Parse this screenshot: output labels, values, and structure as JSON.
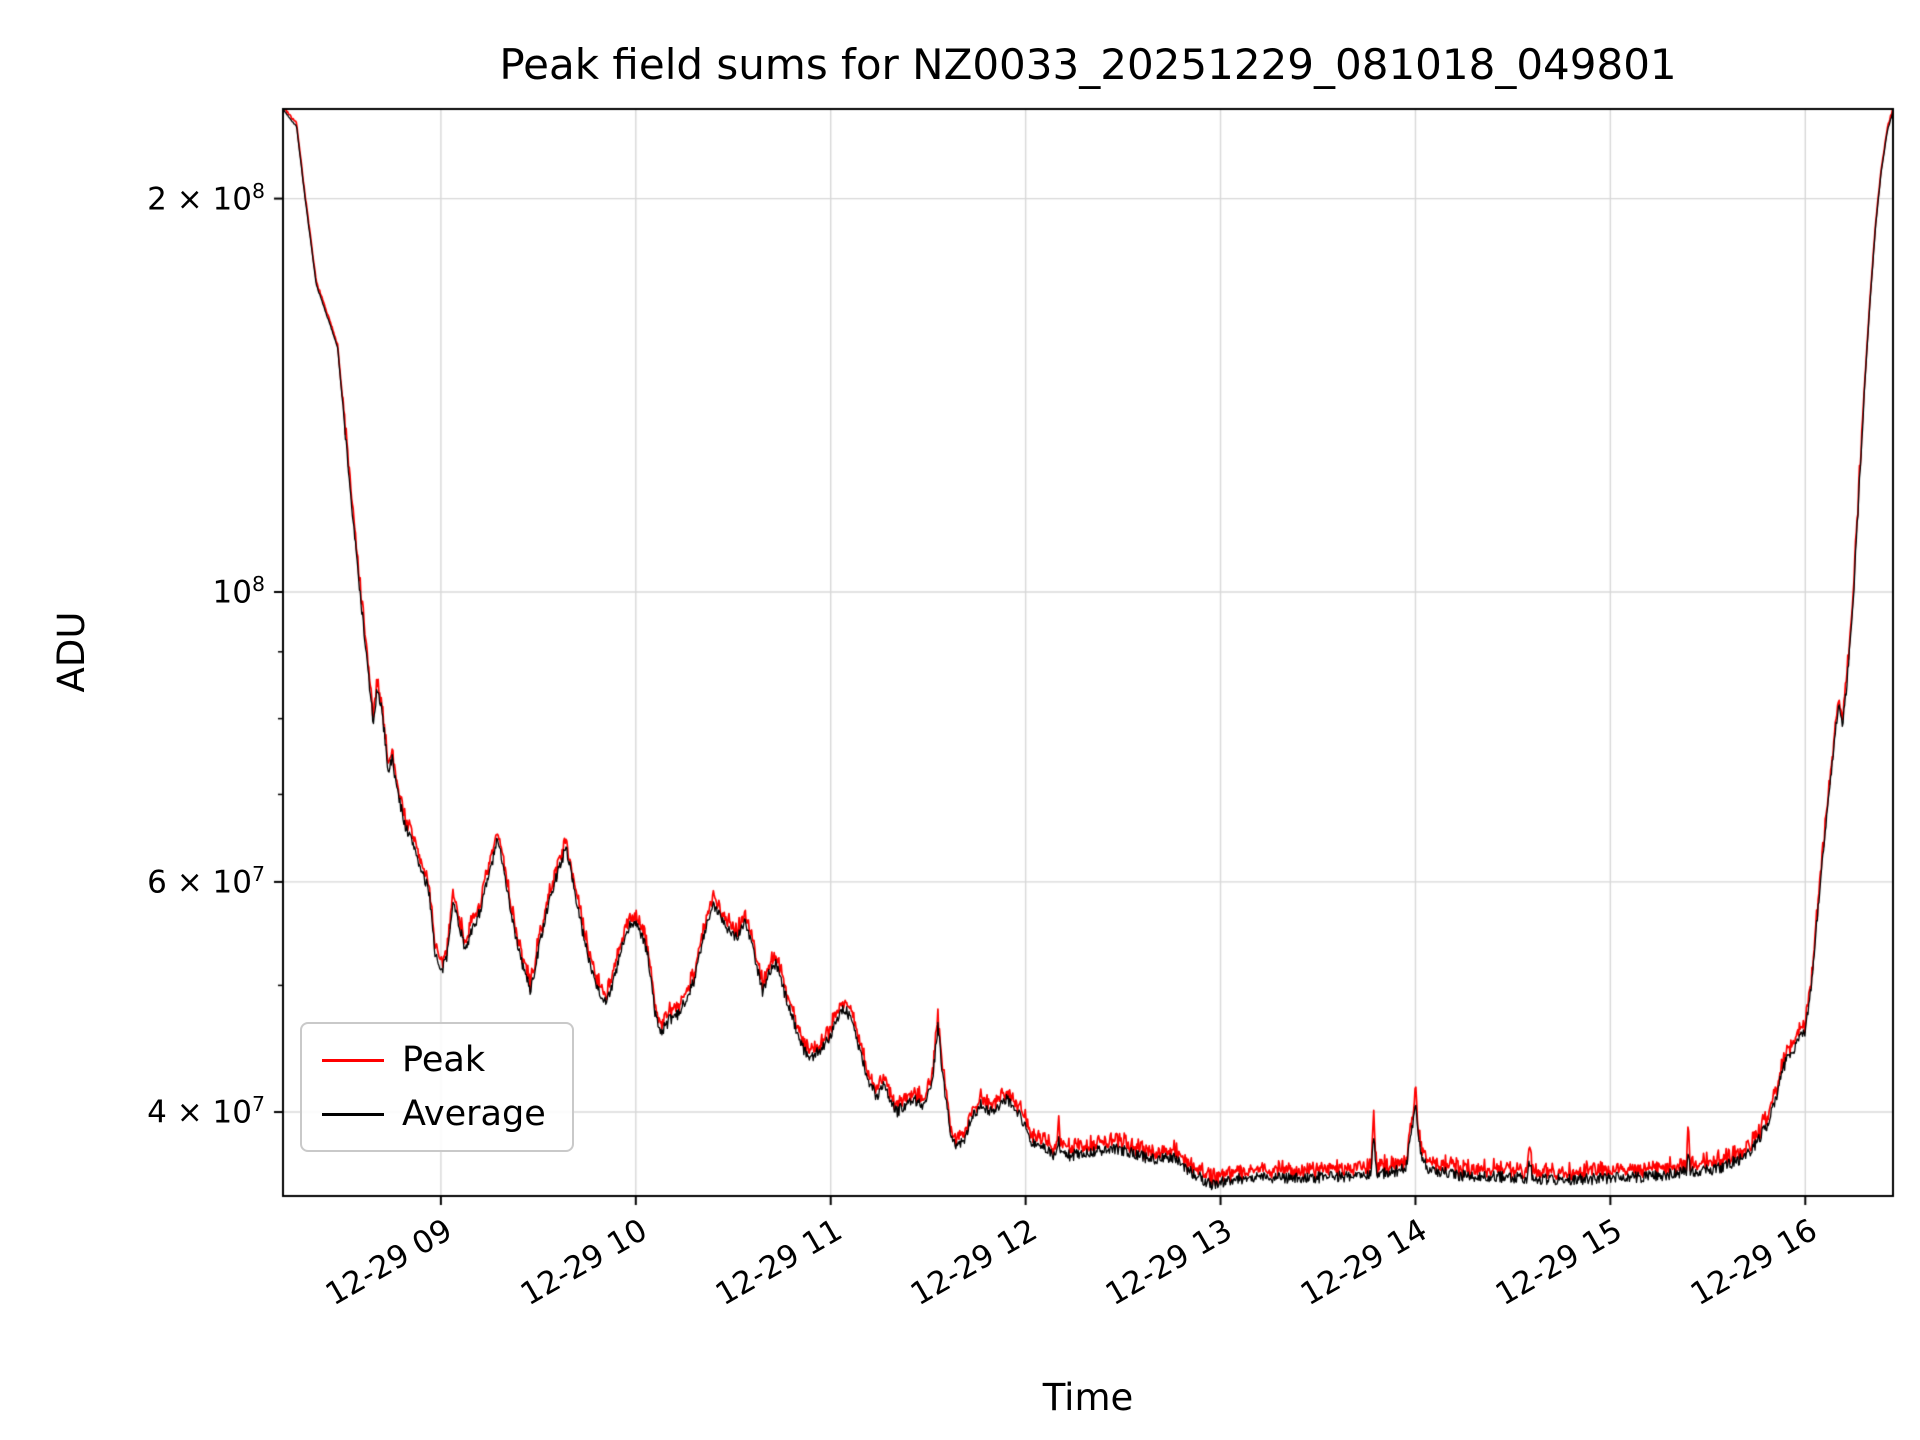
{
  "chart_data": {
    "type": "line",
    "title": "Peak field sums for NZ0033_20251229_081018_049801",
    "xlabel": "Time",
    "ylabel": "ADU",
    "yscale": "log",
    "grid": true,
    "legend_position": "lower left",
    "x_unit": "hours of day on 12-29",
    "xlim": [
      8.19,
      16.45
    ],
    "ylim": [
      34500000.0,
      234200000.0
    ],
    "xticks": [
      {
        "value": 9,
        "label": "12-29 09"
      },
      {
        "value": 10,
        "label": "12-29 10"
      },
      {
        "value": 11,
        "label": "12-29 11"
      },
      {
        "value": 12,
        "label": "12-29 12"
      },
      {
        "value": 13,
        "label": "12-29 13"
      },
      {
        "value": 14,
        "label": "12-29 14"
      },
      {
        "value": 15,
        "label": "12-29 15"
      },
      {
        "value": 16,
        "label": "12-29 16"
      }
    ],
    "yticks": [
      {
        "value": 200000000.0,
        "base": "2 × 10",
        "exp": "8"
      },
      {
        "value": 100000000.0,
        "base": "10",
        "exp": "8"
      },
      {
        "value": 60000000.0,
        "base": "6 × 10",
        "exp": "7"
      },
      {
        "value": 40000000.0,
        "base": "4 × 10",
        "exp": "7"
      }
    ],
    "minor_yticks": [
      50000000.0,
      70000000.0,
      80000000.0,
      90000000.0
    ],
    "series": [
      {
        "name": "Peak",
        "color": "#ff0000"
      },
      {
        "name": "Average",
        "color": "#000000"
      }
    ],
    "average_keypoints": [
      [
        8.19,
        234000000.0
      ],
      [
        8.23,
        230000000.0
      ],
      [
        8.26,
        227000000.0
      ],
      [
        8.3,
        202000000.0
      ],
      [
        8.36,
        172000000.0
      ],
      [
        8.47,
        154000000.0
      ],
      [
        8.55,
        113000000.0
      ],
      [
        8.6,
        95000000.0
      ],
      [
        8.64,
        83000000.0
      ],
      [
        8.655,
        79000000.0
      ],
      [
        8.67,
        83500000.0
      ],
      [
        8.69,
        82500000.0
      ],
      [
        8.71,
        78000000.0
      ],
      [
        8.73,
        73000000.0
      ],
      [
        8.75,
        74500000.0
      ],
      [
        8.78,
        70000000.0
      ],
      [
        8.82,
        66000000.0
      ],
      [
        8.87,
        63500000.0
      ],
      [
        8.9,
        61000000.0
      ],
      [
        8.94,
        59000000.0
      ],
      [
        8.97,
        53000000.0
      ],
      [
        9.0,
        51000000.0
      ],
      [
        9.03,
        52500000.0
      ],
      [
        9.06,
        58000000.0
      ],
      [
        9.09,
        56000000.0
      ],
      [
        9.12,
        53500000.0
      ],
      [
        9.15,
        54500000.0
      ],
      [
        9.2,
        57000000.0
      ],
      [
        9.25,
        61000000.0
      ],
      [
        9.29,
        64500000.0
      ],
      [
        9.32,
        62000000.0
      ],
      [
        9.35,
        58000000.0
      ],
      [
        9.4,
        53000000.0
      ],
      [
        9.46,
        49500000.0
      ],
      [
        9.52,
        55000000.0
      ],
      [
        9.57,
        59000000.0
      ],
      [
        9.62,
        62500000.0
      ],
      [
        9.645,
        63500000.0
      ],
      [
        9.67,
        61000000.0
      ],
      [
        9.7,
        57500000.0
      ],
      [
        9.75,
        53000000.0
      ],
      [
        9.8,
        50000000.0
      ],
      [
        9.84,
        48500000.0
      ],
      [
        9.88,
        50000000.0
      ],
      [
        9.93,
        53500000.0
      ],
      [
        9.97,
        55500000.0
      ],
      [
        10.0,
        56000000.0
      ],
      [
        10.03,
        54500000.0
      ],
      [
        10.06,
        53000000.0
      ],
      [
        10.1,
        47500000.0
      ],
      [
        10.13,
        46000000.0
      ],
      [
        10.17,
        47000000.0
      ],
      [
        10.22,
        47500000.0
      ],
      [
        10.26,
        49000000.0
      ],
      [
        10.3,
        50500000.0
      ],
      [
        10.33,
        53000000.0
      ],
      [
        10.37,
        56000000.0
      ],
      [
        10.4,
        57500000.0
      ],
      [
        10.44,
        56500000.0
      ],
      [
        10.48,
        55000000.0
      ],
      [
        10.52,
        54500000.0
      ],
      [
        10.56,
        56000000.0
      ],
      [
        10.6,
        53500000.0
      ],
      [
        10.65,
        49500000.0
      ],
      [
        10.68,
        51000000.0
      ],
      [
        10.72,
        52000000.0
      ],
      [
        10.76,
        49500000.0
      ],
      [
        10.81,
        47000000.0
      ],
      [
        10.85,
        45000000.0
      ],
      [
        10.89,
        44000000.0
      ],
      [
        10.94,
        44500000.0
      ],
      [
        10.99,
        45500000.0
      ],
      [
        11.04,
        47500000.0
      ],
      [
        11.07,
        48000000.0
      ],
      [
        11.11,
        47000000.0
      ],
      [
        11.15,
        44500000.0
      ],
      [
        11.2,
        42000000.0
      ],
      [
        11.24,
        41000000.0
      ],
      [
        11.27,
        42000000.0
      ],
      [
        11.3,
        41000000.0
      ],
      [
        11.34,
        40000000.0
      ],
      [
        11.38,
        40500000.0
      ],
      [
        11.42,
        41000000.0
      ],
      [
        11.47,
        40500000.0
      ],
      [
        11.52,
        42000000.0
      ],
      [
        11.55,
        46500000.0
      ],
      [
        11.58,
        42000000.0
      ],
      [
        11.61,
        39000000.0
      ],
      [
        11.64,
        37500000.0
      ],
      [
        11.68,
        38000000.0
      ],
      [
        11.72,
        39500000.0
      ],
      [
        11.77,
        40500000.0
      ],
      [
        11.82,
        40000000.0
      ],
      [
        11.86,
        40500000.0
      ],
      [
        11.9,
        41000000.0
      ],
      [
        11.94,
        40500000.0
      ],
      [
        11.98,
        39500000.0
      ],
      [
        12.03,
        38000000.0
      ],
      [
        12.1,
        37500000.0
      ],
      [
        12.15,
        37000000.0
      ],
      [
        12.17,
        38000000.0
      ],
      [
        12.19,
        37000000.0
      ],
      [
        12.3,
        37200000.0
      ],
      [
        12.45,
        37500000.0
      ],
      [
        12.55,
        37200000.0
      ],
      [
        12.65,
        36800000.0
      ],
      [
        12.75,
        37000000.0
      ],
      [
        12.85,
        36000000.0
      ],
      [
        12.95,
        35200000.0
      ],
      [
        13.05,
        35500000.0
      ],
      [
        13.2,
        35700000.0
      ],
      [
        13.4,
        35600000.0
      ],
      [
        13.6,
        35700000.0
      ],
      [
        13.77,
        35800000.0
      ],
      [
        13.785,
        38500000.0
      ],
      [
        13.8,
        35800000.0
      ],
      [
        13.95,
        36200000.0
      ],
      [
        14.0,
        40500000.0
      ],
      [
        14.03,
        37000000.0
      ],
      [
        14.06,
        36200000.0
      ],
      [
        14.2,
        35800000.0
      ],
      [
        14.4,
        35700000.0
      ],
      [
        14.57,
        35600000.0
      ],
      [
        14.585,
        36800000.0
      ],
      [
        14.6,
        35600000.0
      ],
      [
        14.8,
        35500000.0
      ],
      [
        15.0,
        35600000.0
      ],
      [
        15.2,
        35700000.0
      ],
      [
        15.39,
        36000000.0
      ],
      [
        15.4,
        37000000.0
      ],
      [
        15.41,
        36000000.0
      ],
      [
        15.55,
        36200000.0
      ],
      [
        15.66,
        36800000.0
      ],
      [
        15.73,
        37500000.0
      ],
      [
        15.8,
        39000000.0
      ],
      [
        15.85,
        41000000.0
      ],
      [
        15.88,
        43000000.0
      ],
      [
        15.91,
        44000000.0
      ],
      [
        15.94,
        44500000.0
      ],
      [
        15.97,
        45500000.0
      ],
      [
        16.0,
        46000000.0
      ],
      [
        16.03,
        50000000.0
      ],
      [
        16.06,
        56000000.0
      ],
      [
        16.09,
        63000000.0
      ],
      [
        16.12,
        70000000.0
      ],
      [
        16.15,
        77000000.0
      ],
      [
        16.17,
        82000000.0
      ],
      [
        16.19,
        79000000.0
      ],
      [
        16.21,
        84000000.0
      ],
      [
        16.24,
        95000000.0
      ],
      [
        16.27,
        115000000.0
      ],
      [
        16.3,
        140000000.0
      ],
      [
        16.33,
        165000000.0
      ],
      [
        16.36,
        190000000.0
      ],
      [
        16.39,
        210000000.0
      ],
      [
        16.42,
        225000000.0
      ],
      [
        16.45,
        233000000.0
      ]
    ],
    "peak_model": {
      "base_offset": 0.004,
      "noise_gain": 0.02,
      "spikes": [
        {
          "t": 12.17,
          "e": 0.02
        },
        {
          "t": 13.785,
          "e": 0.03
        },
        {
          "t": 14.0,
          "e": 0.03
        },
        {
          "t": 14.585,
          "e": 0.02
        },
        {
          "t": 15.4,
          "e": 0.035
        }
      ]
    },
    "noise": {
      "amplitude": 0.01,
      "seed": 7,
      "step_hours": 0.004
    },
    "colors": {
      "grid": "#d8d8d8",
      "spine": "#000000",
      "background": "#ffffff"
    }
  }
}
